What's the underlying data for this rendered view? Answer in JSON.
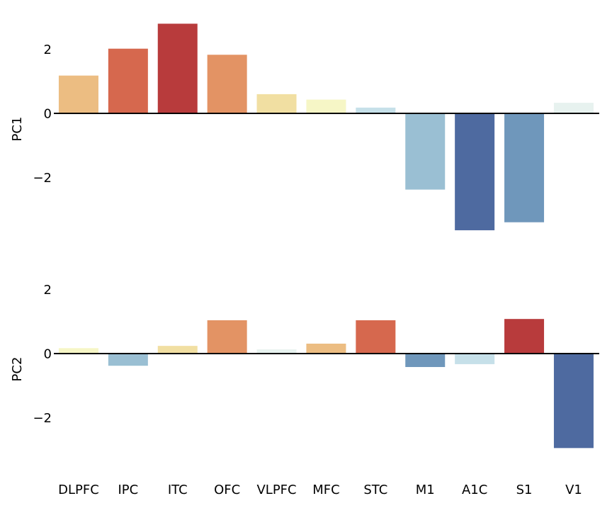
{
  "chart_data": [
    {
      "type": "bar",
      "ylabel": "PC1",
      "categories": [
        "DLPFC",
        "IPC",
        "ITC",
        "OFC",
        "VLPFC",
        "MFC",
        "STC",
        "M1",
        "A1C",
        "S1",
        "V1"
      ],
      "values": [
        1.18,
        2.02,
        2.8,
        1.83,
        0.6,
        0.43,
        0.18,
        -2.38,
        -3.65,
        -3.4,
        0.33
      ],
      "colors": [
        "#ecbd82",
        "#d6684e",
        "#b83b3c",
        "#e39364",
        "#f1dfa2",
        "#f6f6c6",
        "#c6e0e9",
        "#9abfd3",
        "#4e6aa0",
        "#6f97bb",
        "#e7f2ef"
      ],
      "yticks": [
        -2,
        0,
        2
      ],
      "ylim": [
        -4.1,
        3.05
      ],
      "grid": false,
      "legend": "none"
    },
    {
      "type": "bar",
      "ylabel": "PC2",
      "categories": [
        "DLPFC",
        "IPC",
        "ITC",
        "OFC",
        "VLPFC",
        "MFC",
        "STC",
        "M1",
        "A1C",
        "S1",
        "V1"
      ],
      "values": [
        0.17,
        -0.38,
        0.24,
        1.04,
        0.13,
        0.31,
        1.04,
        -0.42,
        -0.33,
        1.08,
        -2.95
      ],
      "colors": [
        "#f6f6c6",
        "#9abfd3",
        "#f1dfa2",
        "#e39364",
        "#e7f2ef",
        "#ecbd82",
        "#d6684e",
        "#6f97bb",
        "#c6e0e9",
        "#b83b3c",
        "#4e6aa0"
      ],
      "yticks": [
        -2,
        0,
        2
      ],
      "ylim": [
        -3.45,
        2.45
      ],
      "grid": false,
      "legend": "none"
    }
  ]
}
